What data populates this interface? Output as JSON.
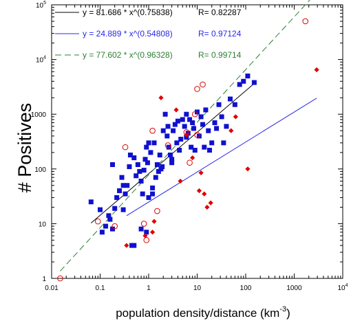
{
  "chart_data": {
    "type": "scatter",
    "xlabel": "population density/distance (km",
    "xlabel_sup": "-3",
    "xlabel_close": ")",
    "ylabel": "# Positives",
    "xscale": "log",
    "yscale": "log",
    "xlim": [
      0.01,
      10000
    ],
    "ylim": [
      1,
      100000
    ],
    "x_ticks": [
      {
        "value": 0.01,
        "label": "0.01",
        "sup": ""
      },
      {
        "value": 0.1,
        "label": "0.1",
        "sup": ""
      },
      {
        "value": 1,
        "label": "1",
        "sup": ""
      },
      {
        "value": 10,
        "label": "10",
        "sup": ""
      },
      {
        "value": 100,
        "label": "100",
        "sup": ""
      },
      {
        "value": 1000,
        "label": "1000",
        "sup": ""
      },
      {
        "value": 10000,
        "label": "10",
        "sup": "4"
      }
    ],
    "y_ticks": [
      {
        "value": 1,
        "label": "1",
        "sup": ""
      },
      {
        "value": 10,
        "label": "10",
        "sup": ""
      },
      {
        "value": 100,
        "label": "100",
        "sup": ""
      },
      {
        "value": 1000,
        "label": "1000",
        "sup": ""
      },
      {
        "value": 10000,
        "label": "10",
        "sup": "4"
      },
      {
        "value": 100000,
        "label": "10",
        "sup": "5"
      }
    ],
    "legend_position": "top-left",
    "series": [
      {
        "marker": "filled-square",
        "color": "#1010d0",
        "points": [
          [
            0.065,
            25
          ],
          [
            0.1,
            18
          ],
          [
            0.11,
            7
          ],
          [
            0.13,
            9
          ],
          [
            0.15,
            14
          ],
          [
            0.16,
            12
          ],
          [
            0.18,
            8
          ],
          [
            0.2,
            19
          ],
          [
            0.22,
            30
          ],
          [
            0.25,
            40
          ],
          [
            0.28,
            70
          ],
          [
            0.3,
            18
          ],
          [
            0.33,
            35
          ],
          [
            0.36,
            50
          ],
          [
            0.4,
            110
          ],
          [
            0.42,
            180
          ],
          [
            0.45,
            4
          ],
          [
            0.5,
            4
          ],
          [
            0.55,
            75
          ],
          [
            0.6,
            120
          ],
          [
            0.65,
            90
          ],
          [
            0.7,
            60
          ],
          [
            0.75,
            35
          ],
          [
            0.8,
            95
          ],
          [
            0.85,
            150
          ],
          [
            0.9,
            250
          ],
          [
            0.95,
            130
          ],
          [
            1.0,
            30
          ],
          [
            1.1,
            200
          ],
          [
            1.2,
            45
          ],
          [
            1.3,
            300
          ],
          [
            1.4,
            70
          ],
          [
            1.5,
            120
          ],
          [
            1.6,
            90
          ],
          [
            1.7,
            180
          ],
          [
            1.8,
            100
          ],
          [
            1.9,
            110
          ],
          [
            2.0,
            500
          ],
          [
            2.2,
            1000
          ],
          [
            2.4,
            400
          ],
          [
            2.6,
            250
          ],
          [
            2.8,
            180
          ],
          [
            3.0,
            150
          ],
          [
            3.2,
            500
          ],
          [
            3.5,
            650
          ],
          [
            3.8,
            300
          ],
          [
            4.0,
            750
          ],
          [
            4.3,
            220
          ],
          [
            4.6,
            350
          ],
          [
            5.0,
            800
          ],
          [
            5.5,
            600
          ],
          [
            6.0,
            1000
          ],
          [
            6.5,
            450
          ],
          [
            7.0,
            800
          ],
          [
            7.5,
            250
          ],
          [
            8.0,
            700
          ],
          [
            8.5,
            550
          ],
          [
            9.0,
            220
          ],
          [
            10,
            1100
          ],
          [
            11,
            400
          ],
          [
            12,
            900
          ],
          [
            13,
            650
          ],
          [
            14,
            250
          ],
          [
            15,
            1200
          ],
          [
            17,
            500
          ],
          [
            18,
            220
          ],
          [
            20,
            300
          ],
          [
            23,
            700
          ],
          [
            25,
            550
          ],
          [
            28,
            1500
          ],
          [
            32,
            900
          ],
          [
            35,
            300
          ],
          [
            40,
            600
          ],
          [
            48,
            1900
          ],
          [
            60,
            1500
          ],
          [
            75,
            3500
          ],
          [
            90,
            4000
          ],
          [
            110,
            5000
          ],
          [
            150,
            3800
          ],
          [
            0.18,
            120
          ],
          [
            0.3,
            50
          ],
          [
            0.5,
            160
          ],
          [
            0.7,
            8
          ],
          [
            1.0,
            300
          ],
          [
            2.5,
            600
          ],
          [
            1.2,
            35
          ],
          [
            0.9,
            7
          ],
          [
            6.0,
            380
          ],
          [
            3.0,
            130
          ]
        ]
      },
      {
        "marker": "open-circle",
        "color": "#dd0000",
        "points": [
          [
            0.015,
            1
          ],
          [
            0.09,
            11
          ],
          [
            0.2,
            9
          ],
          [
            0.33,
            250
          ],
          [
            0.8,
            10
          ],
          [
            0.9,
            5
          ],
          [
            1.2,
            500
          ],
          [
            1.5,
            17
          ],
          [
            2.5,
            270
          ],
          [
            6,
            470
          ],
          [
            7,
            130
          ],
          [
            9,
            1000
          ],
          [
            10,
            420
          ],
          [
            10,
            2900
          ],
          [
            13,
            3500
          ],
          [
            1700,
            50000
          ]
        ]
      },
      {
        "marker": "filled-diamond",
        "color": "#e00000",
        "points": [
          [
            0.35,
            4
          ],
          [
            0.85,
            6
          ],
          [
            1.2,
            7
          ],
          [
            1.3,
            11
          ],
          [
            1.8,
            2000
          ],
          [
            3.7,
            1200
          ],
          [
            4.5,
            60
          ],
          [
            6,
            420
          ],
          [
            8,
            160
          ],
          [
            11,
            40
          ],
          [
            12,
            85
          ],
          [
            14,
            35
          ],
          [
            16,
            20
          ],
          [
            19,
            24
          ],
          [
            50,
            500
          ],
          [
            62,
            900
          ],
          [
            110,
            100
          ],
          [
            2900,
            6500
          ]
        ]
      }
    ],
    "fits": [
      {
        "label": "y = 81.686 * x^(0.75838)",
        "r_label": "R= 0.82287",
        "coef": 81.686,
        "exp": 0.75838,
        "x_range": [
          0.065,
          150
        ],
        "color": "#000000",
        "dash": "solid"
      },
      {
        "label": "y = 24.889 * x^(0.54808)",
        "r_label": "R= 0.97124",
        "coef": 24.889,
        "exp": 0.54808,
        "x_range": [
          0.35,
          2900
        ],
        "color": "#2828e8",
        "dash": "solid"
      },
      {
        "label": "y = 77.602 * x^(0.96328)",
        "r_label": "R= 0.99714",
        "coef": 77.602,
        "exp": 0.96328,
        "x_range": [
          0.015,
          2900
        ],
        "color": "#2e7d32",
        "dash": "dashed"
      }
    ]
  }
}
